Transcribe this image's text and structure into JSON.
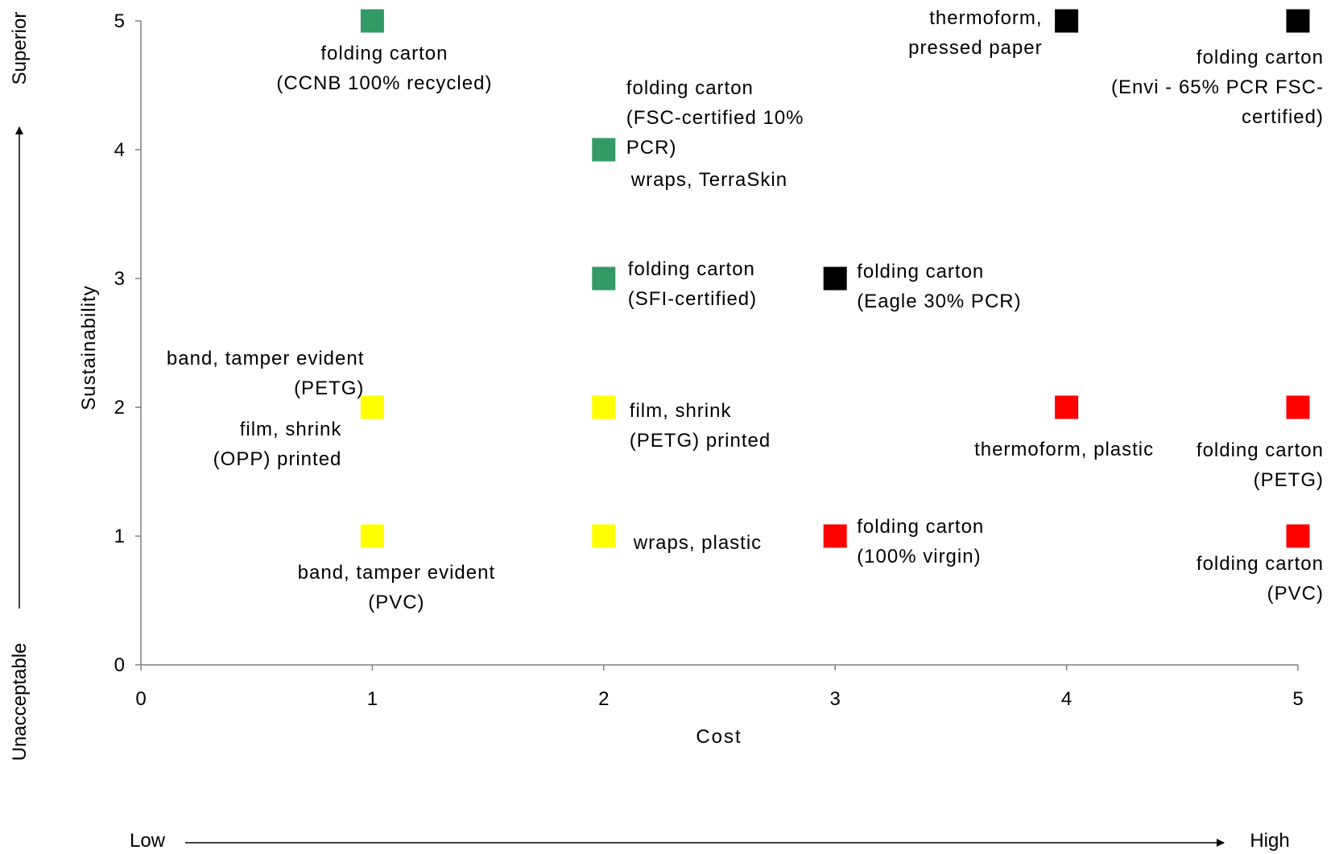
{
  "chart_data": {
    "type": "scatter",
    "xlabel": "Cost",
    "ylabel": "Sustainability",
    "xlim": [
      0,
      5
    ],
    "ylim": [
      0,
      5
    ],
    "xticks": [
      "0",
      "1",
      "2",
      "3",
      "4",
      "5"
    ],
    "yticks": [
      "0",
      "1",
      "2",
      "3",
      "4",
      "5"
    ],
    "grid": false,
    "legend": "none",
    "x_scale_low": "Low",
    "x_scale_high": "High",
    "y_scale_low": "Unacceptable",
    "y_scale_high": "Superior",
    "colors": {
      "green": "#339966",
      "yellow": "#ffff00",
      "red": "#ff0000",
      "black": "#000000"
    },
    "points": [
      {
        "x": 1,
        "y": 5,
        "color": "green",
        "label": [
          "folding carton",
          "(CCNB 100% recycled)"
        ]
      },
      {
        "x": 2,
        "y": 4,
        "color": "green",
        "label": [
          "folding carton",
          "(FSC-certified 10%",
          "PCR)",
          "wraps, TerraSkin"
        ]
      },
      {
        "x": 2,
        "y": 3,
        "color": "green",
        "label": [
          "folding carton",
          "(SFI-certified)"
        ]
      },
      {
        "x": 4,
        "y": 5,
        "color": "black",
        "label": [
          "thermoform,",
          "pressed paper"
        ]
      },
      {
        "x": 5,
        "y": 5,
        "color": "black",
        "label": [
          "folding carton",
          "(Envi - 65% PCR FSC-",
          "certified)"
        ]
      },
      {
        "x": 3,
        "y": 3,
        "color": "black",
        "label": [
          "folding carton",
          "(Eagle 30% PCR)"
        ]
      },
      {
        "x": 1,
        "y": 2,
        "color": "yellow",
        "label": [
          "band, tamper evident",
          "(PETG)",
          "film, shrink",
          "(OPP) printed"
        ]
      },
      {
        "x": 2,
        "y": 2,
        "color": "yellow",
        "label": [
          "film, shrink",
          "(PETG) printed"
        ]
      },
      {
        "x": 1,
        "y": 1,
        "color": "yellow",
        "label": [
          "band, tamper evident",
          "(PVC)"
        ]
      },
      {
        "x": 2,
        "y": 1,
        "color": "yellow",
        "label": [
          "wraps, plastic"
        ]
      },
      {
        "x": 3,
        "y": 1,
        "color": "red",
        "label": [
          "folding carton",
          "(100% virgin)"
        ]
      },
      {
        "x": 4,
        "y": 2,
        "color": "red",
        "label": [
          "thermoform, plastic"
        ]
      },
      {
        "x": 5,
        "y": 2,
        "color": "red",
        "label": [
          "folding carton",
          "(PETG)"
        ]
      },
      {
        "x": 5,
        "y": 1,
        "color": "red",
        "label": [
          "folding carton",
          "(PVC)"
        ]
      }
    ]
  }
}
